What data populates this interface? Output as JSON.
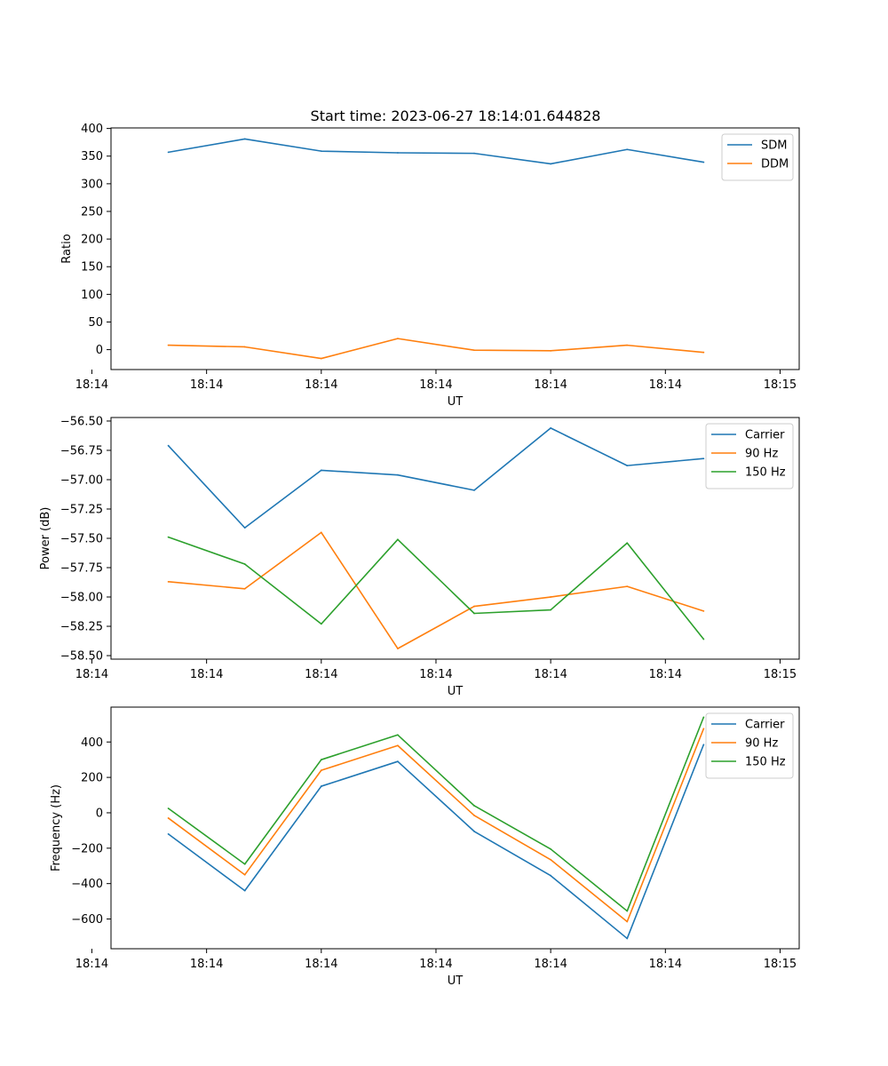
{
  "figure": {
    "title": "Start time: 2023-06-27 18:14:01.644828"
  },
  "chart_data": [
    {
      "type": "line",
      "title": "Start time: 2023-06-27 18:14:01.644828",
      "xlabel": "UT",
      "ylabel": "Ratio",
      "x": [
        1,
        2,
        3,
        4,
        5,
        6,
        7,
        8
      ],
      "xlim": [
        0.25,
        9.25
      ],
      "x_ticks": [
        {
          "pos": 0,
          "label": "18:14"
        },
        {
          "pos": 1.5,
          "label": "18:14"
        },
        {
          "pos": 3,
          "label": "18:14"
        },
        {
          "pos": 4.5,
          "label": "18:14"
        },
        {
          "pos": 6,
          "label": "18:14"
        },
        {
          "pos": 7.5,
          "label": "18:14"
        },
        {
          "pos": 9,
          "label": "18:15"
        }
      ],
      "ylim": [
        -36,
        401
      ],
      "y_ticks": [
        0,
        50,
        100,
        150,
        200,
        250,
        300,
        350,
        400
      ],
      "y_tick_labels": [
        "0",
        "50",
        "100",
        "150",
        "200",
        "250",
        "300",
        "350",
        "400"
      ],
      "legend": "top-right",
      "series": [
        {
          "name": "SDM",
          "color": "#1f77b4",
          "values": [
            357,
            381,
            359,
            356,
            355,
            336,
            362,
            339
          ]
        },
        {
          "name": "DDM",
          "color": "#ff7f0e",
          "values": [
            8,
            5,
            -16,
            20,
            -1,
            -2,
            8,
            -5
          ]
        }
      ]
    },
    {
      "type": "line",
      "title": "",
      "xlabel": "UT",
      "ylabel": "Power (dB)",
      "x": [
        1,
        2,
        3,
        4,
        5,
        6,
        7,
        8
      ],
      "xlim": [
        0.25,
        9.25
      ],
      "x_ticks": [
        {
          "pos": 0,
          "label": "18:14"
        },
        {
          "pos": 1.5,
          "label": "18:14"
        },
        {
          "pos": 3,
          "label": "18:14"
        },
        {
          "pos": 4.5,
          "label": "18:14"
        },
        {
          "pos": 6,
          "label": "18:14"
        },
        {
          "pos": 7.5,
          "label": "18:14"
        },
        {
          "pos": 9,
          "label": "18:15"
        }
      ],
      "ylim": [
        -58.53,
        -56.47
      ],
      "y_ticks": [
        -58.5,
        -58.25,
        -58.0,
        -57.75,
        -57.5,
        -57.25,
        -57.0,
        -56.75,
        -56.5
      ],
      "y_tick_labels": [
        "−58.50",
        "−58.25",
        "−58.00",
        "−57.75",
        "−57.50",
        "−57.25",
        "−57.00",
        "−56.75",
        "−56.50"
      ],
      "legend": "top-right",
      "series": [
        {
          "name": "Carrier",
          "color": "#1f77b4",
          "values": [
            -56.71,
            -57.41,
            -56.92,
            -56.96,
            -57.09,
            -56.56,
            -56.88,
            -56.82
          ]
        },
        {
          "name": "90 Hz",
          "color": "#ff7f0e",
          "values": [
            -57.87,
            -57.93,
            -57.45,
            -58.44,
            -58.08,
            -58.0,
            -57.91,
            -58.12
          ]
        },
        {
          "name": "150 Hz",
          "color": "#2ca02c",
          "values": [
            -57.49,
            -57.72,
            -58.23,
            -57.51,
            -58.14,
            -58.11,
            -57.54,
            -58.36
          ]
        }
      ]
    },
    {
      "type": "line",
      "title": "",
      "xlabel": "UT",
      "ylabel": "Frequency (Hz)",
      "x": [
        1,
        2,
        3,
        4,
        5,
        6,
        7,
        8
      ],
      "xlim": [
        0.25,
        9.25
      ],
      "x_ticks": [
        {
          "pos": 0,
          "label": "18:14"
        },
        {
          "pos": 1.5,
          "label": "18:14"
        },
        {
          "pos": 3,
          "label": "18:14"
        },
        {
          "pos": 4.5,
          "label": "18:14"
        },
        {
          "pos": 6,
          "label": "18:14"
        },
        {
          "pos": 7.5,
          "label": "18:14"
        },
        {
          "pos": 9,
          "label": "18:15"
        }
      ],
      "ylim": [
        -768,
        597
      ],
      "y_ticks": [
        -600,
        -400,
        -200,
        0,
        200,
        400
      ],
      "y_tick_labels": [
        "−600",
        "−400",
        "−200",
        "0",
        "200",
        "400"
      ],
      "legend": "top-right",
      "series": [
        {
          "name": "Carrier",
          "color": "#1f77b4",
          "values": [
            -120,
            -440,
            150,
            290,
            -105,
            -355,
            -710,
            385
          ]
        },
        {
          "name": "90 Hz",
          "color": "#ff7f0e",
          "values": [
            -30,
            -350,
            240,
            380,
            -15,
            -265,
            -615,
            475
          ]
        },
        {
          "name": "150 Hz",
          "color": "#2ca02c",
          "values": [
            25,
            -290,
            300,
            440,
            40,
            -205,
            -555,
            540
          ]
        }
      ]
    }
  ]
}
